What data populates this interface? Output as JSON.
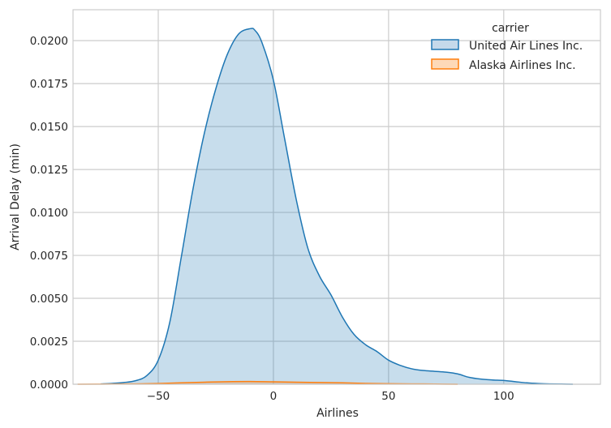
{
  "chart_data": {
    "type": "area",
    "xlabel": "Airlines",
    "ylabel": "Arrival Delay (min)",
    "xlim": [
      -87,
      142
    ],
    "ylim": [
      0,
      0.0218
    ],
    "xticks": [
      -50,
      0,
      50,
      100
    ],
    "xtick_labels": [
      "−50",
      "0",
      "50",
      "100"
    ],
    "yticks": [
      0,
      0.0025,
      0.005,
      0.0075,
      0.01,
      0.0125,
      0.015,
      0.0175,
      0.02
    ],
    "ytick_labels": [
      "0.0000",
      "0.0025",
      "0.0050",
      "0.0075",
      "0.0100",
      "0.0125",
      "0.0150",
      "0.0175",
      "0.0200"
    ],
    "grid": true,
    "legend": {
      "title": "carrier",
      "placement": "top-right"
    },
    "series": [
      {
        "name": "United Air Lines Inc.",
        "color": "#1f77b4",
        "fill": "#c5d9ea",
        "x": [
          -75,
          -70,
          -65,
          -60,
          -55,
          -50,
          -45,
          -40,
          -35,
          -30,
          -25,
          -20,
          -15,
          -10,
          -8,
          -5,
          0,
          5,
          10,
          15,
          20,
          25,
          30,
          35,
          40,
          45,
          50,
          55,
          60,
          65,
          70,
          75,
          80,
          85,
          90,
          95,
          100,
          105,
          110,
          115,
          120,
          125,
          130
        ],
        "y": [
          2e-05,
          5e-05,
          0.0001,
          0.0002,
          0.0005,
          0.0014,
          0.0036,
          0.0074,
          0.0113,
          0.0146,
          0.0172,
          0.0192,
          0.0204,
          0.0207,
          0.0206,
          0.0199,
          0.0177,
          0.0142,
          0.0107,
          0.0079,
          0.0063,
          0.0052,
          0.0039,
          0.0029,
          0.0023,
          0.0019,
          0.0014,
          0.0011,
          0.0009,
          0.0008,
          0.00075,
          0.0007,
          0.0006,
          0.0004,
          0.0003,
          0.00025,
          0.00022,
          0.00015,
          8e-05,
          4e-05,
          2e-05,
          1e-05,
          0.0
        ]
      },
      {
        "name": "Alaska Airlines Inc.",
        "color": "#ff7f0e",
        "fill": "#fdd9b8",
        "x": [
          -85,
          -70,
          -60,
          -50,
          -40,
          -30,
          -20,
          -10,
          0,
          10,
          20,
          30,
          40,
          50,
          60,
          70,
          80
        ],
        "y": [
          0.0,
          1e-05,
          2e-05,
          4e-05,
          8e-05,
          0.00012,
          0.00015,
          0.00016,
          0.00014,
          0.00012,
          0.0001,
          8e-05,
          5e-05,
          3e-05,
          2e-05,
          1e-05,
          0.0
        ]
      }
    ]
  }
}
